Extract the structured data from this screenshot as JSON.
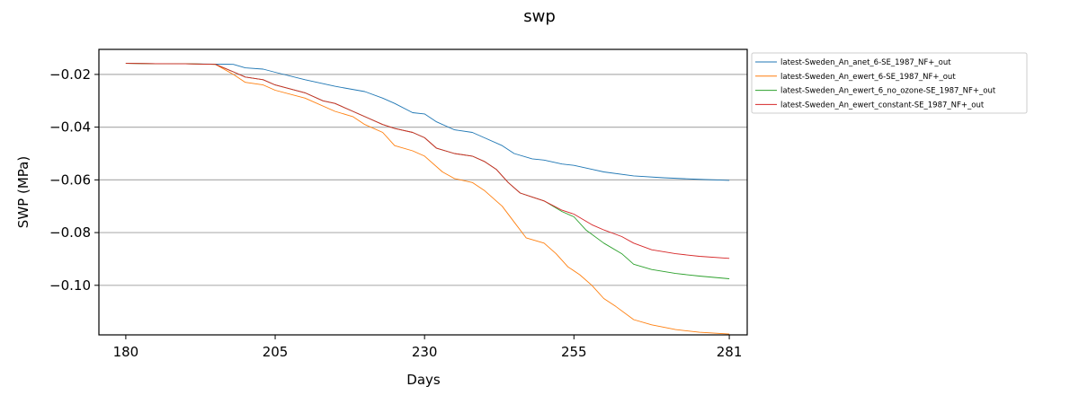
{
  "chart_data": {
    "type": "line",
    "title": "swp",
    "xlabel": "Days",
    "ylabel": "SWP (MPa)",
    "xlim": [
      175.5,
      284
    ],
    "ylim": [
      -0.1188,
      -0.0105
    ],
    "xticks": [
      180,
      205,
      230,
      255,
      281
    ],
    "yticks": [
      -0.02,
      -0.04,
      -0.06,
      -0.08,
      -0.1
    ],
    "ytick_labels": [
      "−0.02",
      "−0.04",
      "−0.06",
      "−0.08",
      "−0.10"
    ],
    "grid": "horizontal",
    "legend_position": "outside-top-right",
    "series": [
      {
        "name": "latest-Sweden_An_anet_6-SE_1987_NF+_out",
        "color": "#1f77b4",
        "points": [
          [
            180,
            -0.0158
          ],
          [
            185,
            -0.0159
          ],
          [
            190,
            -0.016
          ],
          [
            195,
            -0.0161
          ],
          [
            198,
            -0.0162
          ],
          [
            200,
            -0.0175
          ],
          [
            203,
            -0.018
          ],
          [
            205,
            -0.0192
          ],
          [
            210,
            -0.022
          ],
          [
            215,
            -0.0245
          ],
          [
            220,
            -0.0265
          ],
          [
            223,
            -0.029
          ],
          [
            225,
            -0.031
          ],
          [
            228,
            -0.0345
          ],
          [
            230,
            -0.035
          ],
          [
            232,
            -0.038
          ],
          [
            235,
            -0.041
          ],
          [
            238,
            -0.042
          ],
          [
            240,
            -0.044
          ],
          [
            243,
            -0.047
          ],
          [
            245,
            -0.05
          ],
          [
            248,
            -0.052
          ],
          [
            250,
            -0.0525
          ],
          [
            253,
            -0.054
          ],
          [
            255,
            -0.0545
          ],
          [
            258,
            -0.056
          ],
          [
            260,
            -0.057
          ],
          [
            265,
            -0.0585
          ],
          [
            270,
            -0.0592
          ],
          [
            275,
            -0.0597
          ],
          [
            281,
            -0.0602
          ]
        ]
      },
      {
        "name": "latest-Sweden_An_ewert_6-SE_1987_NF+_out",
        "color": "#ff7f0e",
        "points": [
          [
            180,
            -0.0158
          ],
          [
            185,
            -0.0159
          ],
          [
            190,
            -0.016
          ],
          [
            195,
            -0.0162
          ],
          [
            198,
            -0.02
          ],
          [
            200,
            -0.023
          ],
          [
            203,
            -0.024
          ],
          [
            205,
            -0.026
          ],
          [
            210,
            -0.029
          ],
          [
            215,
            -0.034
          ],
          [
            218,
            -0.036
          ],
          [
            220,
            -0.039
          ],
          [
            223,
            -0.042
          ],
          [
            225,
            -0.047
          ],
          [
            228,
            -0.049
          ],
          [
            230,
            -0.051
          ],
          [
            233,
            -0.057
          ],
          [
            235,
            -0.0595
          ],
          [
            238,
            -0.061
          ],
          [
            240,
            -0.064
          ],
          [
            243,
            -0.07
          ],
          [
            245,
            -0.076
          ],
          [
            247,
            -0.082
          ],
          [
            250,
            -0.084
          ],
          [
            252,
            -0.088
          ],
          [
            254,
            -0.093
          ],
          [
            256,
            -0.096
          ],
          [
            258,
            -0.1
          ],
          [
            260,
            -0.105
          ],
          [
            262,
            -0.108
          ],
          [
            265,
            -0.113
          ],
          [
            268,
            -0.115
          ],
          [
            272,
            -0.1168
          ],
          [
            276,
            -0.1178
          ],
          [
            281,
            -0.1185
          ]
        ]
      },
      {
        "name": "latest-Sweden_An_ewert_6_no_ozone-SE_1987_NF+_out",
        "color": "#2ca02c",
        "points": [
          [
            180,
            -0.0158
          ],
          [
            185,
            -0.0159
          ],
          [
            190,
            -0.016
          ],
          [
            195,
            -0.0162
          ],
          [
            198,
            -0.019
          ],
          [
            200,
            -0.021
          ],
          [
            203,
            -0.022
          ],
          [
            205,
            -0.024
          ],
          [
            210,
            -0.027
          ],
          [
            213,
            -0.03
          ],
          [
            215,
            -0.031
          ],
          [
            218,
            -0.034
          ],
          [
            220,
            -0.036
          ],
          [
            223,
            -0.039
          ],
          [
            225,
            -0.0405
          ],
          [
            228,
            -0.042
          ],
          [
            230,
            -0.044
          ],
          [
            232,
            -0.048
          ],
          [
            235,
            -0.05
          ],
          [
            238,
            -0.051
          ],
          [
            240,
            -0.053
          ],
          [
            242,
            -0.056
          ],
          [
            244,
            -0.061
          ],
          [
            246,
            -0.065
          ],
          [
            248,
            -0.0665
          ],
          [
            250,
            -0.068
          ],
          [
            253,
            -0.072
          ],
          [
            255,
            -0.074
          ],
          [
            257,
            -0.079
          ],
          [
            260,
            -0.084
          ],
          [
            263,
            -0.088
          ],
          [
            265,
            -0.092
          ],
          [
            268,
            -0.094
          ],
          [
            272,
            -0.0955
          ],
          [
            276,
            -0.0965
          ],
          [
            281,
            -0.0975
          ]
        ]
      },
      {
        "name": "latest-Sweden_An_ewert_constant-SE_1987_NF+_out",
        "color": "#d62728",
        "points": [
          [
            180,
            -0.0158
          ],
          [
            185,
            -0.0159
          ],
          [
            190,
            -0.016
          ],
          [
            195,
            -0.0162
          ],
          [
            198,
            -0.019
          ],
          [
            200,
            -0.021
          ],
          [
            203,
            -0.022
          ],
          [
            205,
            -0.024
          ],
          [
            210,
            -0.027
          ],
          [
            213,
            -0.03
          ],
          [
            215,
            -0.031
          ],
          [
            218,
            -0.034
          ],
          [
            220,
            -0.036
          ],
          [
            223,
            -0.039
          ],
          [
            225,
            -0.0405
          ],
          [
            228,
            -0.042
          ],
          [
            230,
            -0.044
          ],
          [
            232,
            -0.048
          ],
          [
            235,
            -0.05
          ],
          [
            238,
            -0.051
          ],
          [
            240,
            -0.053
          ],
          [
            242,
            -0.056
          ],
          [
            244,
            -0.061
          ],
          [
            246,
            -0.065
          ],
          [
            248,
            -0.0665
          ],
          [
            250,
            -0.068
          ],
          [
            253,
            -0.0715
          ],
          [
            255,
            -0.073
          ],
          [
            258,
            -0.077
          ],
          [
            260,
            -0.079
          ],
          [
            263,
            -0.0815
          ],
          [
            265,
            -0.084
          ],
          [
            268,
            -0.0865
          ],
          [
            272,
            -0.088
          ],
          [
            276,
            -0.089
          ],
          [
            281,
            -0.0898
          ]
        ]
      }
    ]
  }
}
